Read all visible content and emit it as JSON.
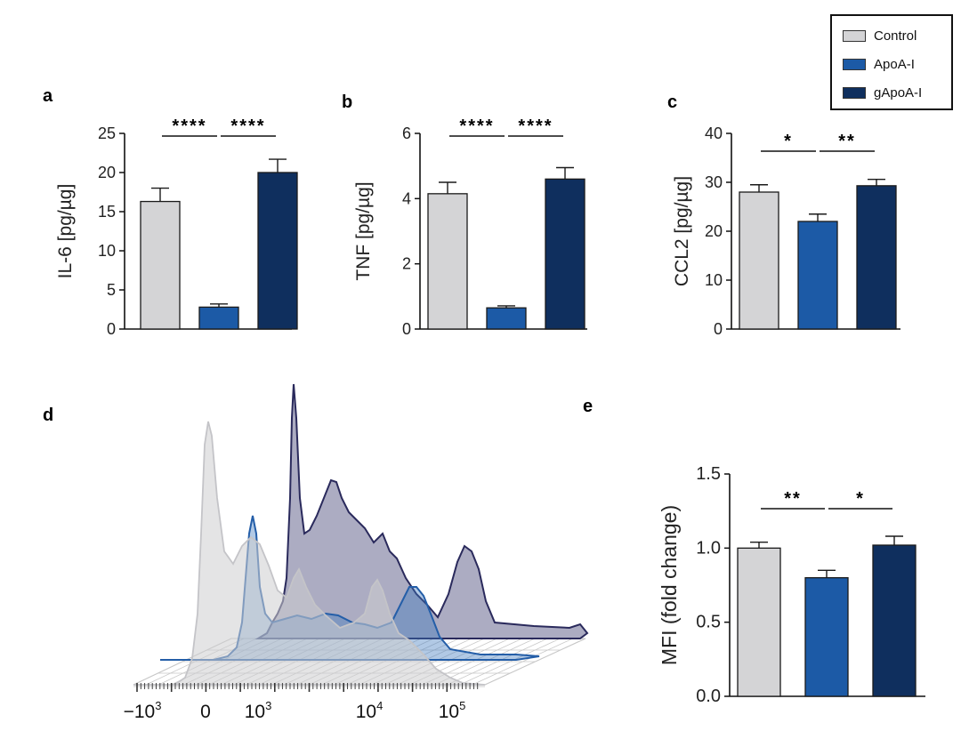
{
  "colors": {
    "control": "#d4d4d6",
    "apoa": "#1c5aa6",
    "gapoa": "#0f2f5e"
  },
  "legend": [
    {
      "label": "Control",
      "color": "#d4d4d6"
    },
    {
      "label": "ApoA-I",
      "color": "#1c5aa6"
    },
    {
      "label": "gApoA-I",
      "color": "#0f2f5e"
    }
  ],
  "chart_data": [
    {
      "panel": "a",
      "type": "bar",
      "categories": [
        "Control",
        "ApoA-I",
        "gApoA-I"
      ],
      "values": [
        16.3,
        2.8,
        20.0
      ],
      "errors": [
        1.7,
        0.4,
        1.7
      ],
      "ylabel": "IL-6 [pg/µg]",
      "ylim": [
        0,
        25
      ],
      "yticks": [
        0,
        5,
        10,
        15,
        20,
        25
      ],
      "significance": [
        {
          "from": 0,
          "to": 1,
          "label": "****"
        },
        {
          "from": 1,
          "to": 2,
          "label": "****"
        }
      ]
    },
    {
      "panel": "b",
      "type": "bar",
      "categories": [
        "Control",
        "ApoA-I",
        "gApoA-I"
      ],
      "values": [
        4.15,
        0.65,
        4.6
      ],
      "errors": [
        0.35,
        0.06,
        0.35
      ],
      "ylabel": "TNF [pg/µg]",
      "ylim": [
        0,
        6
      ],
      "yticks": [
        0,
        2,
        4,
        6
      ],
      "significance": [
        {
          "from": 0,
          "to": 1,
          "label": "****"
        },
        {
          "from": 1,
          "to": 2,
          "label": "****"
        }
      ]
    },
    {
      "panel": "c",
      "type": "bar",
      "categories": [
        "Control",
        "ApoA-I",
        "gApoA-I"
      ],
      "values": [
        28.0,
        22.0,
        29.3
      ],
      "errors": [
        1.5,
        1.5,
        1.3
      ],
      "ylabel": "CCL2 [pg/µg]",
      "ylim": [
        0,
        40
      ],
      "yticks": [
        0,
        10,
        20,
        30,
        40
      ],
      "significance": [
        {
          "from": 0,
          "to": 1,
          "label": "*"
        },
        {
          "from": 1,
          "to": 2,
          "label": "**"
        }
      ]
    },
    {
      "panel": "d",
      "type": "area",
      "xticks": [
        "−10",
        "0",
        "10",
        "10",
        "10"
      ],
      "xtick_exponents": [
        "3",
        "",
        "3",
        "4",
        "5"
      ],
      "series": [
        {
          "color": "#d4d4d6"
        },
        {
          "color": "#1c5aa6"
        },
        {
          "color": "#0f2f5e"
        }
      ]
    },
    {
      "panel": "e",
      "type": "bar",
      "categories": [
        "Control",
        "ApoA-I",
        "gApoA-I"
      ],
      "values": [
        1.0,
        0.8,
        1.02
      ],
      "errors": [
        0.04,
        0.05,
        0.06
      ],
      "ylabel": "MFI (fold change)",
      "ylim": [
        0,
        1.5
      ],
      "yticks": [
        "0.0",
        "0.5",
        "1.0",
        "1.5"
      ],
      "significance": [
        {
          "from": 0,
          "to": 1,
          "label": "**"
        },
        {
          "from": 1,
          "to": 2,
          "label": "*"
        }
      ]
    }
  ]
}
